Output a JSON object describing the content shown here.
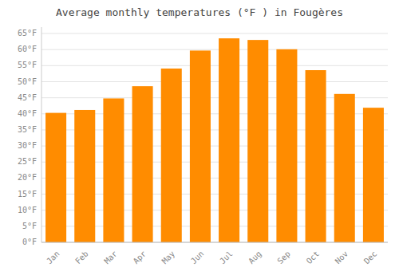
{
  "chart_data": {
    "type": "bar",
    "title": "Average monthly temperatures (°F ) in Fougères",
    "categories": [
      "Jan",
      "Feb",
      "Mar",
      "Apr",
      "May",
      "Jun",
      "Jul",
      "Aug",
      "Sep",
      "Oct",
      "Nov",
      "Dec"
    ],
    "values": [
      40.3,
      41.2,
      44.8,
      48.6,
      54.1,
      59.7,
      63.5,
      63.0,
      60.1,
      53.6,
      46.2,
      41.9
    ],
    "color": "#FF8C00",
    "ylim": [
      0,
      67
    ],
    "yticks": [
      {
        "value": 0,
        "label": "0°F"
      },
      {
        "value": 5,
        "label": "5°F"
      },
      {
        "value": 10,
        "label": "10°F"
      },
      {
        "value": 15,
        "label": "15°F"
      },
      {
        "value": 20,
        "label": "20°F"
      },
      {
        "value": 25,
        "label": "25°F"
      },
      {
        "value": 30,
        "label": "30°F"
      },
      {
        "value": 35,
        "label": "35°F"
      },
      {
        "value": 40,
        "label": "40°F"
      },
      {
        "value": 45,
        "label": "45°F"
      },
      {
        "value": 50,
        "label": "50°F"
      },
      {
        "value": 55,
        "label": "55°F"
      },
      {
        "value": 60,
        "label": "60°F"
      },
      {
        "value": 65,
        "label": "65°F"
      }
    ],
    "grid": true
  }
}
